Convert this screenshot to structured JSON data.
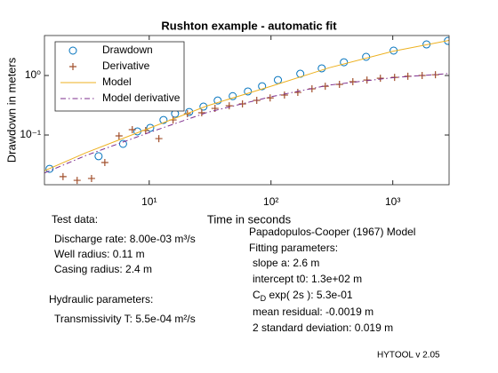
{
  "chart_data": {
    "type": "line",
    "title": "Rushton example - automatic fit",
    "xlabel": "Time in seconds",
    "ylabel": "Drawdown in meters",
    "xscale": "log",
    "yscale": "log",
    "xlim": [
      1.38,
      2900
    ],
    "ylim": [
      0.0146,
      4.7
    ],
    "xticks": [
      {
        "value": 10,
        "label": "10¹"
      },
      {
        "value": 100,
        "label": "10²"
      },
      {
        "value": 1000,
        "label": "10³"
      }
    ],
    "yticks": [
      {
        "value": 0.1,
        "label": "10⁻¹"
      },
      {
        "value": 1,
        "label": "10⁰"
      }
    ],
    "legend": "upper left",
    "series": [
      {
        "name": "Drawdown",
        "color": "#0072bd",
        "marker": "circle",
        "x": [
          1.52,
          3.84,
          6.1,
          8.0,
          10.2,
          13.1,
          16.3,
          21.3,
          27.9,
          36.5,
          48.5,
          64.6,
          84.5,
          114,
          174,
          261,
          397,
          604,
          1016,
          1893,
          2838
        ],
        "values": [
          0.027,
          0.044,
          0.071,
          0.115,
          0.132,
          0.179,
          0.228,
          0.244,
          0.3,
          0.38,
          0.45,
          0.54,
          0.66,
          0.84,
          1.07,
          1.32,
          1.67,
          2.06,
          2.62,
          3.33,
          3.82
        ]
      },
      {
        "name": "Derivative",
        "color": "#a2502d",
        "marker": "plus",
        "x": [
          1.96,
          2.56,
          3.36,
          4.32,
          5.65,
          7.26,
          9.35,
          12.0,
          15.7,
          20.6,
          27.0,
          34.7,
          45.4,
          58.3,
          76.4,
          98.4,
          129,
          166,
          217,
          279,
          365,
          470,
          614,
          791,
          1035,
          1330,
          1742,
          2240
        ],
        "values": [
          0.02,
          0.0173,
          0.0186,
          0.0345,
          0.0966,
          0.123,
          0.119,
          0.087,
          0.179,
          0.228,
          0.236,
          0.28,
          0.31,
          0.333,
          0.382,
          0.42,
          0.47,
          0.52,
          0.597,
          0.66,
          0.71,
          0.786,
          0.84,
          0.9,
          0.93,
          0.97,
          1.0,
          1.03
        ]
      },
      {
        "name": "Model",
        "color": "#edb120",
        "marker": "none",
        "dash": "solid",
        "x": [
          1.38,
          3,
          10,
          30,
          100,
          300,
          1000,
          2900
        ],
        "values": [
          0.025,
          0.05,
          0.13,
          0.31,
          0.66,
          1.35,
          2.55,
          3.9
        ]
      },
      {
        "name": "Model derivative",
        "color": "#7e2f8e",
        "marker": "none",
        "dash": "dashdot",
        "x": [
          1.38,
          3,
          10,
          30,
          100,
          300,
          1000,
          2900
        ],
        "values": [
          0.023,
          0.045,
          0.11,
          0.24,
          0.44,
          0.69,
          0.92,
          1.08
        ]
      }
    ]
  },
  "test_data": {
    "heading": "Test data:",
    "lines": [
      "Discharge rate: 8.00e-03 m³/s",
      "Well radius: 0.11 m",
      "Casing radius: 2.4 m"
    ]
  },
  "hydraulic": {
    "heading": "Hydraulic parameters:",
    "lines": [
      "Transmissivity T: 5.5e-04 m²/s"
    ]
  },
  "model": {
    "name": "Papadopulos-Cooper (1967) Model",
    "heading": "Fitting parameters:",
    "slope": "slope a: 2.6 m",
    "intercept": "intercept t0: 1.3e+02 m",
    "cd": {
      "text": "C",
      "sub": "D",
      "rest": " exp( 2s ): 5.3e-01"
    },
    "residual": "mean residual: -0.0019 m",
    "deviation": "2 standard deviation: 0.019 m"
  },
  "footer": "HYTOOL v 2.05"
}
